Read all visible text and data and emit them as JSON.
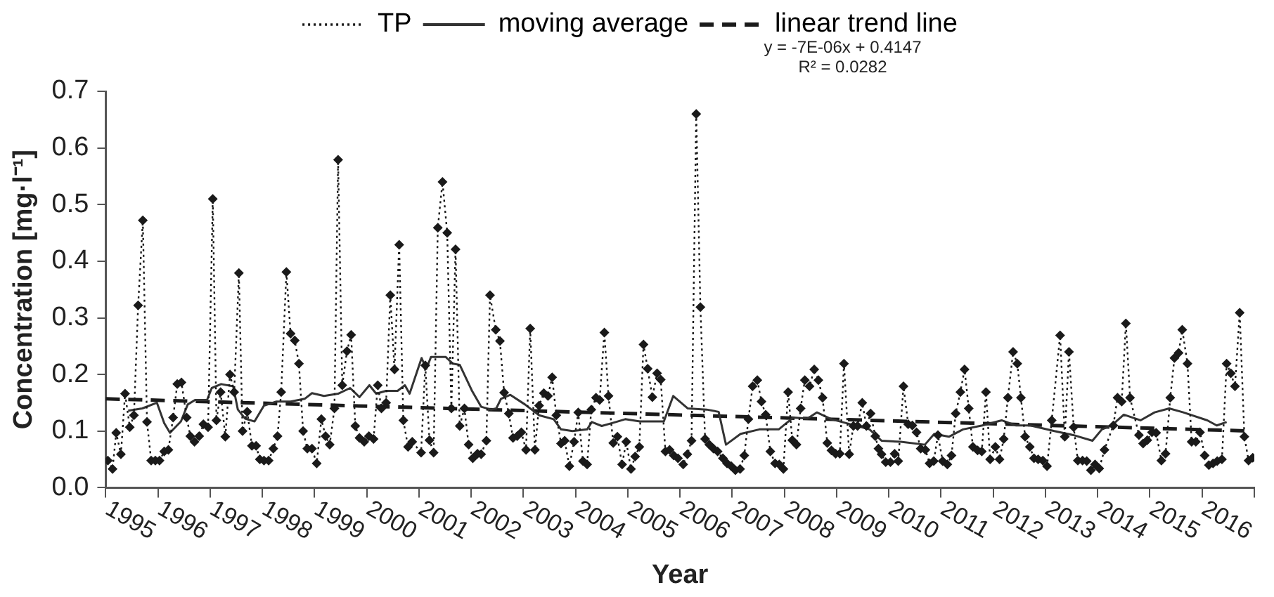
{
  "chart_data": {
    "type": "line",
    "xlabel": "Year",
    "ylabel": "Concentration [mg·l⁻¹]",
    "xlim": [
      1995,
      2017
    ],
    "xticks": [
      1995,
      1996,
      1997,
      1998,
      1999,
      2000,
      2001,
      2002,
      2003,
      2004,
      2005,
      2006,
      2007,
      2008,
      2009,
      2010,
      2011,
      2012,
      2013,
      2014,
      2015,
      2016,
      {
        "value": 2017,
        "label": null
      }
    ],
    "ylim": [
      0,
      0.7
    ],
    "yticks": [
      {
        "value": 0,
        "label": "0.0"
      },
      0.1,
      0.2,
      0.3,
      0.4,
      0.5,
      0.6,
      0.7
    ],
    "grid": false,
    "legend": "top",
    "annotations": [
      "y = -7E-06x + 0.4147",
      "R² = 0.0282"
    ],
    "series": [
      {
        "name": "TP",
        "color": "#1a1a1a",
        "line_style": "dotted",
        "marker": "diamond",
        "x": [
          1995.04,
          1995.13,
          1995.2,
          1995.29,
          1995.37,
          1995.46,
          1995.54,
          1995.62,
          1995.71,
          1995.79,
          1995.87,
          1995.95,
          1996.03,
          1996.12,
          1996.2,
          1996.29,
          1996.37,
          1996.45,
          1996.55,
          1996.62,
          1996.7,
          1996.79,
          1996.87,
          1996.96,
          1997.05,
          1997.12,
          1997.2,
          1997.29,
          1997.38,
          1997.46,
          1997.55,
          1997.62,
          1997.71,
          1997.8,
          1997.88,
          1997.95,
          1998.03,
          1998.12,
          1998.21,
          1998.29,
          1998.36,
          1998.46,
          1998.54,
          1998.62,
          1998.7,
          1998.78,
          1998.86,
          1998.95,
          1999.04,
          1999.13,
          1999.21,
          1999.29,
          1999.38,
          1999.45,
          1999.53,
          1999.62,
          1999.7,
          1999.78,
          1999.86,
          1999.95,
          2000.04,
          2000.13,
          2000.21,
          2000.28,
          2000.37,
          2000.45,
          2000.53,
          2000.62,
          2000.7,
          2000.79,
          2000.87,
          2001.04,
          2001.12,
          2001.2,
          2001.28,
          2001.36,
          2001.45,
          2001.54,
          2001.62,
          2001.7,
          2001.78,
          2001.87,
          2001.95,
          2002.03,
          2002.12,
          2002.19,
          2002.29,
          2002.36,
          2002.47,
          2002.55,
          2002.63,
          2002.72,
          2002.8,
          2002.88,
          2002.96,
          2003.05,
          2003.13,
          2003.22,
          2003.3,
          2003.39,
          2003.47,
          2003.55,
          2003.63,
          2003.72,
          2003.79,
          2003.88,
          2003.97,
          2004.05,
          2004.14,
          2004.22,
          2004.3,
          2004.39,
          2004.46,
          2004.55,
          2004.63,
          2004.72,
          2004.8,
          2004.89,
          2004.97,
          2005.06,
          2005.14,
          2005.22,
          2005.3,
          2005.38,
          2005.47,
          2005.56,
          2005.63,
          2005.72,
          2005.8,
          2005.88,
          2005.96,
          2006.06,
          2006.14,
          2006.22,
          2006.31,
          2006.39,
          2006.48,
          2006.56,
          2006.64,
          2006.72,
          2006.82,
          2006.9,
          2006.98,
          2007.06,
          2007.15,
          2007.23,
          2007.31,
          2007.39,
          2007.48,
          2007.56,
          2007.64,
          2007.73,
          2007.82,
          2007.9,
          2007.98,
          2008.07,
          2008.15,
          2008.23,
          2008.31,
          2008.39,
          2008.48,
          2008.57,
          2008.65,
          2008.73,
          2008.82,
          2008.9,
          2008.98,
          2009.06,
          2009.14,
          2009.24,
          2009.32,
          2009.4,
          2009.49,
          2009.57,
          2009.65,
          2009.74,
          2009.8,
          2009.86,
          2009.94,
          2010.03,
          2010.11,
          2010.18,
          2010.28,
          2010.37,
          2010.45,
          2010.53,
          2010.61,
          2010.7,
          2010.78,
          2010.86,
          2010.94,
          2011.03,
          2011.12,
          2011.2,
          2011.28,
          2011.37,
          2011.45,
          2011.53,
          2011.61,
          2011.7,
          2011.78,
          2011.86,
          2011.94,
          2012.04,
          2012.12,
          2012.2,
          2012.28,
          2012.38,
          2012.46,
          2012.53,
          2012.61,
          2012.7,
          2012.78,
          2012.86,
          2012.95,
          2013.03,
          2013.12,
          2013.28,
          2013.37,
          2013.45,
          2013.54,
          2013.62,
          2013.71,
          2013.79,
          2013.87,
          2013.95,
          2014.03,
          2014.13,
          2014.3,
          2014.38,
          2014.46,
          2014.54,
          2014.62,
          2014.79,
          2014.87,
          2014.95,
          2015.04,
          2015.12,
          2015.22,
          2015.3,
          2015.39,
          2015.47,
          2015.55,
          2015.62,
          2015.72,
          2015.8,
          2015.88,
          2015.96,
          2016.05,
          2016.13,
          2016.21,
          2016.29,
          2016.38,
          2016.47,
          2016.55,
          2016.63,
          2016.72,
          2016.81,
          2016.89,
          2016.97
        ],
        "values": [
          0.048,
          0.033,
          0.097,
          0.059,
          0.166,
          0.107,
          0.128,
          0.322,
          0.472,
          0.116,
          0.048,
          0.048,
          0.048,
          0.064,
          0.067,
          0.124,
          0.183,
          0.186,
          0.124,
          0.091,
          0.081,
          0.091,
          0.112,
          0.107,
          0.51,
          0.119,
          0.169,
          0.09,
          0.2,
          0.169,
          0.379,
          0.1,
          0.134,
          0.074,
          0.074,
          0.05,
          0.048,
          0.048,
          0.069,
          0.091,
          0.169,
          0.381,
          0.272,
          0.26,
          0.219,
          0.1,
          0.069,
          0.069,
          0.043,
          0.121,
          0.091,
          0.076,
          0.14,
          0.579,
          0.181,
          0.241,
          0.27,
          0.109,
          0.088,
          0.081,
          0.091,
          0.086,
          0.181,
          0.14,
          0.15,
          0.34,
          0.209,
          0.429,
          0.119,
          0.072,
          0.081,
          0.062,
          0.216,
          0.084,
          0.062,
          0.459,
          0.54,
          0.45,
          0.14,
          0.421,
          0.109,
          0.14,
          0.076,
          0.052,
          0.06,
          0.059,
          0.083,
          0.34,
          0.279,
          0.259,
          0.168,
          0.131,
          0.088,
          0.091,
          0.098,
          0.067,
          0.281,
          0.067,
          0.145,
          0.167,
          0.162,
          0.195,
          0.128,
          0.078,
          0.083,
          0.038,
          0.081,
          0.133,
          0.047,
          0.041,
          0.138,
          0.159,
          0.155,
          0.274,
          0.162,
          0.079,
          0.09,
          0.041,
          0.081,
          0.033,
          0.055,
          0.072,
          0.253,
          0.21,
          0.16,
          0.202,
          0.191,
          0.064,
          0.067,
          0.057,
          0.052,
          0.041,
          0.059,
          0.083,
          0.66,
          0.319,
          0.086,
          0.076,
          0.069,
          0.064,
          0.052,
          0.043,
          0.038,
          0.031,
          0.033,
          0.057,
          0.121,
          0.179,
          0.19,
          0.152,
          0.129,
          0.064,
          0.043,
          0.041,
          0.033,
          0.169,
          0.084,
          0.076,
          0.14,
          0.19,
          0.179,
          0.209,
          0.19,
          0.159,
          0.079,
          0.066,
          0.06,
          0.06,
          0.219,
          0.059,
          0.109,
          0.109,
          0.15,
          0.109,
          0.131,
          0.091,
          0.069,
          0.059,
          0.045,
          0.045,
          0.06,
          0.047,
          0.179,
          0.112,
          0.11,
          0.098,
          0.069,
          0.067,
          0.043,
          0.047,
          0.093,
          0.047,
          0.041,
          0.057,
          0.131,
          0.169,
          0.209,
          0.14,
          0.072,
          0.066,
          0.064,
          0.169,
          0.05,
          0.072,
          0.05,
          0.086,
          0.159,
          0.24,
          0.219,
          0.159,
          0.09,
          0.072,
          0.052,
          0.05,
          0.048,
          0.038,
          0.119,
          0.269,
          0.09,
          0.24,
          0.107,
          0.048,
          0.048,
          0.047,
          0.031,
          0.041,
          0.034,
          0.067,
          0.11,
          0.159,
          0.152,
          0.29,
          0.159,
          0.093,
          0.078,
          0.084,
          0.098,
          0.097,
          0.048,
          0.06,
          0.159,
          0.229,
          0.238,
          0.279,
          0.219,
          0.081,
          0.081,
          0.098,
          0.057,
          0.04,
          0.043,
          0.047,
          0.05,
          0.219,
          0.202,
          0.179,
          0.309,
          0.09,
          0.048,
          0.053
        ]
      },
      {
        "name": "moving average",
        "color": "#333333",
        "line_style": "solid",
        "marker": "none",
        "x": [
          1995.43,
          1995.7,
          1995.98,
          1996.12,
          1996.23,
          1996.44,
          1996.57,
          1996.71,
          1996.94,
          1997.03,
          1997.21,
          1997.44,
          1997.53,
          1997.67,
          1997.85,
          1998.03,
          1998.26,
          1998.54,
          1998.81,
          1998.95,
          1999.18,
          1999.45,
          1999.68,
          1999.86,
          2000.05,
          2000.18,
          2000.37,
          2000.59,
          2000.73,
          2000.82,
          2001.05,
          2001.14,
          2001.23,
          2001.51,
          2001.65,
          2001.78,
          2002.01,
          2002.19,
          2002.38,
          2002.48,
          2002.57,
          2002.75,
          2003.03,
          2003.3,
          2003.58,
          2003.72,
          2003.94,
          2004.22,
          2004.31,
          2004.5,
          2004.77,
          2004.95,
          2005.23,
          2005.69,
          2005.87,
          2006.15,
          2006.51,
          2006.74,
          2006.88,
          2007.16,
          2007.52,
          2007.89,
          2008.17,
          2008.44,
          2008.62,
          2008.9,
          2009.27,
          2009.63,
          2009.86,
          2010.23,
          2010.69,
          2010.87,
          2011.15,
          2011.42,
          2011.79,
          2012.16,
          2012.43,
          2012.71,
          2013.17,
          2013.53,
          2013.9,
          2014.08,
          2014.27,
          2014.5,
          2014.82,
          2015.09,
          2015.37,
          2015.64,
          2016.1,
          2016.28,
          2016.47
        ],
        "values": [
          0.136,
          0.14,
          0.15,
          0.114,
          0.097,
          0.117,
          0.147,
          0.155,
          0.155,
          0.176,
          0.183,
          0.179,
          0.138,
          0.122,
          0.117,
          0.145,
          0.152,
          0.152,
          0.157,
          0.167,
          0.162,
          0.166,
          0.176,
          0.16,
          0.181,
          0.166,
          0.171,
          0.171,
          0.181,
          0.166,
          0.229,
          0.21,
          0.231,
          0.231,
          0.219,
          0.217,
          0.172,
          0.143,
          0.138,
          0.14,
          0.157,
          0.164,
          0.147,
          0.128,
          0.121,
          0.103,
          0.1,
          0.103,
          0.116,
          0.109,
          0.116,
          0.121,
          0.117,
          0.117,
          0.162,
          0.14,
          0.138,
          0.134,
          0.076,
          0.095,
          0.103,
          0.103,
          0.124,
          0.122,
          0.133,
          0.121,
          0.112,
          0.103,
          0.083,
          0.081,
          0.076,
          0.095,
          0.09,
          0.103,
          0.11,
          0.119,
          0.11,
          0.11,
          0.1,
          0.093,
          0.083,
          0.103,
          0.11,
          0.129,
          0.119,
          0.133,
          0.14,
          0.133,
          0.119,
          0.11,
          0.116
        ]
      },
      {
        "name": "linear trend line",
        "color": "#1a1a1a",
        "line_style": "dashed",
        "marker": "none",
        "x": [
          1995.0,
          2016.97
        ],
        "values": [
          0.157,
          0.1
        ]
      }
    ]
  }
}
